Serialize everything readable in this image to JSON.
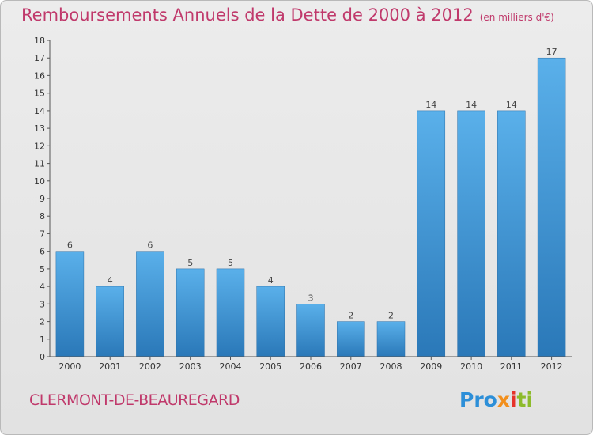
{
  "chart_data": {
    "type": "bar",
    "title": "Remboursements Annuels de la Dette de 2000 à 2012",
    "unit_note": "(en milliers d'€)",
    "categories": [
      "2000",
      "2001",
      "2002",
      "2003",
      "2004",
      "2005",
      "2006",
      "2007",
      "2008",
      "2009",
      "2010",
      "2011",
      "2012"
    ],
    "values": [
      6,
      4,
      6,
      5,
      5,
      4,
      3,
      2,
      2,
      14,
      14,
      14,
      17
    ],
    "data_labels": [
      "6",
      "4",
      "6",
      "5",
      "5",
      "4",
      "3",
      "2",
      "2",
      "14",
      "14",
      "14",
      "17"
    ],
    "ylim": [
      0,
      18
    ],
    "yticks": [
      "0",
      "1",
      "2",
      "3",
      "4",
      "5",
      "6",
      "7",
      "8",
      "9",
      "10",
      "11",
      "12",
      "13",
      "14",
      "15",
      "16",
      "17",
      "18"
    ],
    "grid": false,
    "bar_color_top": "#5ab0ea",
    "bar_color_bottom": "#2a78b8"
  },
  "commune": "CLERMONT-DE-BEAUREGARD",
  "logo": {
    "p1": "Pro",
    "p2": "x",
    "p3": "i",
    "p4": "ti"
  },
  "colors": {
    "title": "#c0396b",
    "axis": "#555555"
  }
}
